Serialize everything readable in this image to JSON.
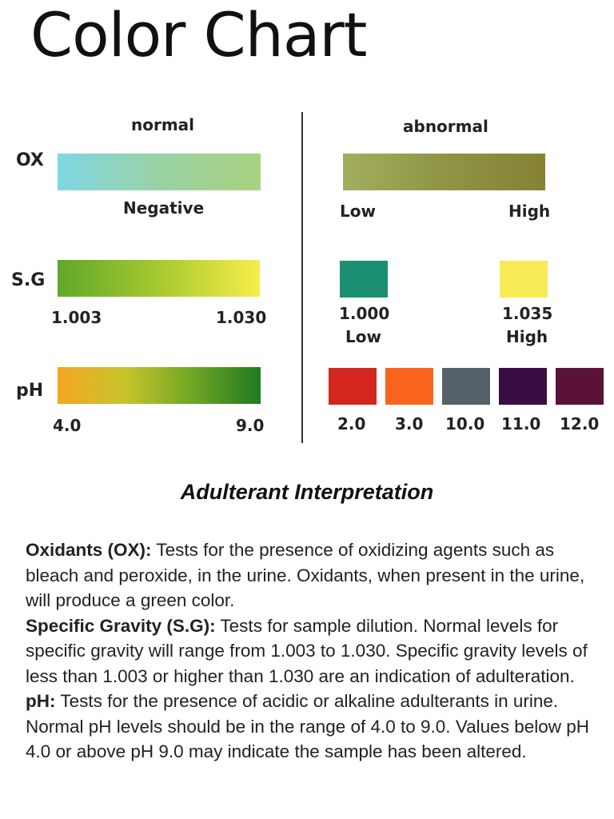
{
  "title": "Color Chart",
  "headers": {
    "normal": "normal",
    "abnormal": "abnormal"
  },
  "rows": {
    "ox": {
      "label": "OX",
      "normal_label": "Negative",
      "normal_colors": [
        "#7fd6e3",
        "#9ad2a6",
        "#a8d27f"
      ],
      "abnormal_colors": [
        "#a3ae5e",
        "#8f9447",
        "#868234"
      ],
      "abnormal_labels": {
        "low": "Low",
        "high": "High"
      }
    },
    "sg": {
      "label": "S.G",
      "normal_colors": [
        "#5fa82a",
        "#a7c92f",
        "#f6ee4a"
      ],
      "normal_labels": {
        "min": "1.003",
        "max": "1.030"
      },
      "abnormal": [
        {
          "color": "#1a8f72",
          "value": "1.000",
          "level": "Low"
        },
        {
          "color": "#f7ea54",
          "value": "1.035",
          "level": "High"
        }
      ]
    },
    "ph": {
      "label": "pH",
      "normal_colors": [
        "#f5a623",
        "#c7c42c",
        "#6fa624",
        "#1f7a23"
      ],
      "normal_labels": {
        "min": "4.0",
        "max": "9.0"
      },
      "abnormal": [
        {
          "color": "#d3261e",
          "value": "2.0"
        },
        {
          "color": "#f9641e",
          "value": "3.0"
        },
        {
          "color": "#566069",
          "value": "10.0"
        },
        {
          "color": "#3a0d45",
          "value": "11.0"
        },
        {
          "color": "#5a1236",
          "value": "12.0"
        }
      ]
    }
  },
  "subtitle": "Adulterant Interpretation",
  "paragraphs": [
    {
      "term": "Oxidants (OX):",
      "text": " Tests for the presence of oxidizing agents such as bleach and peroxide, in the urine. Oxidants, when present in the urine, will produce a green color."
    },
    {
      "term": "Specific Gravity (S.G):",
      "text": " Tests for sample dilution.  Normal levels for specific gravity will range from 1.003 to 1.030. Specific gravity levels of less than 1.003 or higher than 1.030 are an indication of adulteration."
    },
    {
      "term": "pH:",
      "text": " Tests for the presence of acidic or alkaline adulterants in urine. Normal pH levels should be in the range of 4.0 to 9.0. Values below pH 4.0 or above pH 9.0 may indicate the sample has been altered."
    }
  ]
}
